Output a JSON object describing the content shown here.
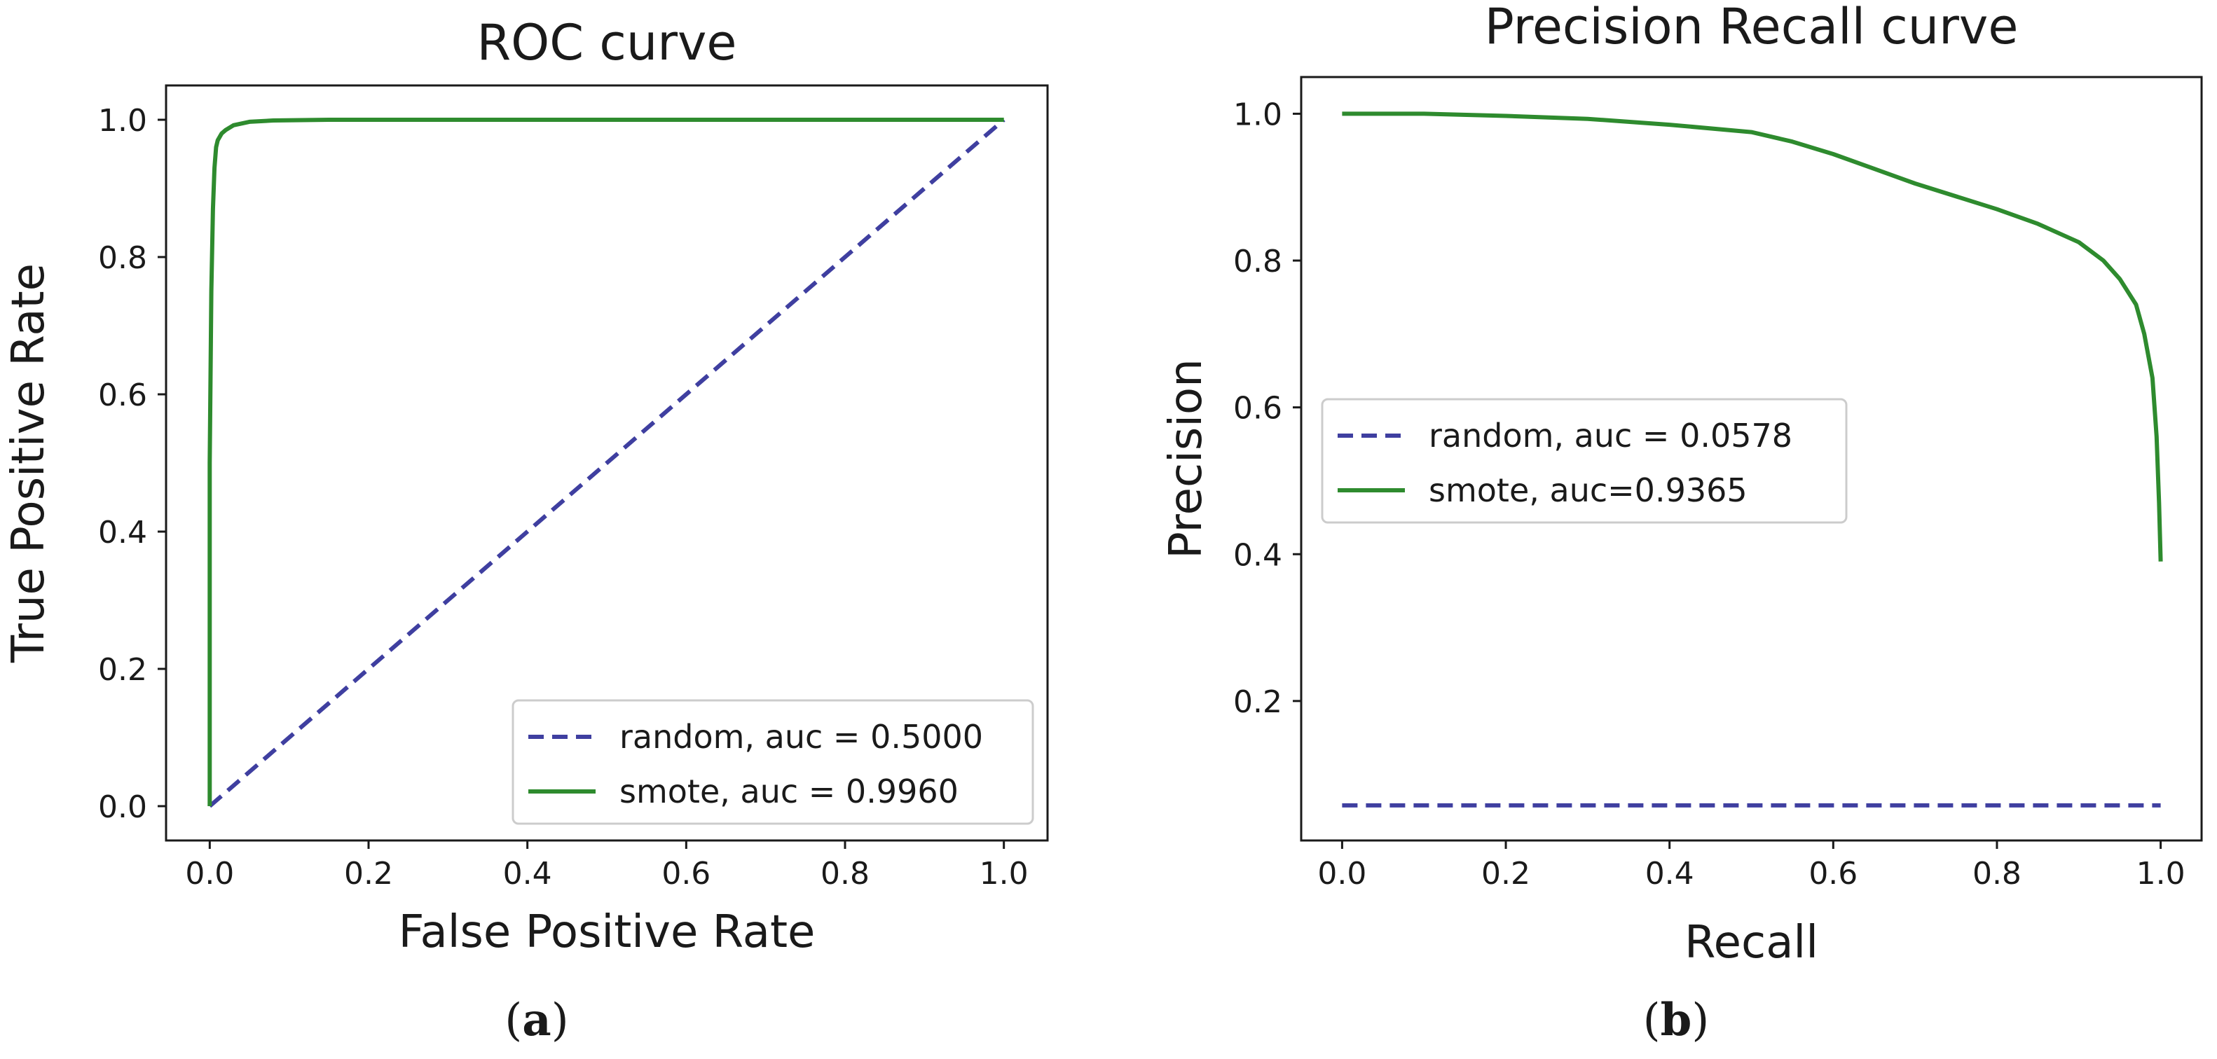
{
  "chart_data": [
    {
      "type": "line",
      "panel": "a",
      "caption_open": "(",
      "caption_letter": "a",
      "caption_close": ")",
      "title": "ROC curve",
      "xlabel": "False Positive Rate",
      "ylabel": "True Positive Rate",
      "xlim": [
        -0.055,
        1.055
      ],
      "ylim": [
        -0.05,
        1.05
      ],
      "xticks": [
        0.0,
        0.2,
        0.4,
        0.6,
        0.8,
        1.0
      ],
      "xtick_labels": [
        "0.0",
        "0.2",
        "0.4",
        "0.6",
        "0.8",
        "1.0"
      ],
      "yticks": [
        0.0,
        0.2,
        0.4,
        0.6,
        0.8,
        1.0
      ],
      "ytick_labels": [
        "0.0",
        "0.2",
        "0.4",
        "0.6",
        "0.8",
        "1.0"
      ],
      "legend_position": "lower-right",
      "series": [
        {
          "name": "random",
          "label": "random, auc = 0.5000",
          "color": "#3f3fa0",
          "dash": "dashed",
          "x": [
            0.0,
            1.0
          ],
          "y": [
            0.0,
            1.0
          ]
        },
        {
          "name": "smote",
          "label": "smote, auc = 0.9960",
          "color": "#2e8b2e",
          "dash": "solid",
          "x": [
            0.0,
            0.0,
            0.002,
            0.004,
            0.006,
            0.008,
            0.01,
            0.015,
            0.02,
            0.03,
            0.05,
            0.08,
            0.15,
            0.3,
            0.5,
            0.7,
            1.0
          ],
          "y": [
            0.0,
            0.5,
            0.75,
            0.87,
            0.93,
            0.96,
            0.97,
            0.98,
            0.985,
            0.992,
            0.997,
            0.999,
            1.0,
            1.0,
            1.0,
            1.0,
            1.0
          ]
        }
      ]
    },
    {
      "type": "line",
      "panel": "b",
      "caption_open": "(",
      "caption_letter": "b",
      "caption_close": ")",
      "title": "Precision Recall curve",
      "xlabel": "Recall",
      "ylabel": "Precision",
      "xlim": [
        -0.05,
        1.05
      ],
      "ylim": [
        0.01,
        1.05
      ],
      "xticks": [
        0.0,
        0.2,
        0.4,
        0.6,
        0.8,
        1.0
      ],
      "xtick_labels": [
        "0.0",
        "0.2",
        "0.4",
        "0.6",
        "0.8",
        "1.0"
      ],
      "yticks": [
        0.2,
        0.4,
        0.6,
        0.8,
        1.0
      ],
      "ytick_labels": [
        "0.2",
        "0.4",
        "0.6",
        "0.8",
        "1.0"
      ],
      "legend_position": "center-left",
      "series": [
        {
          "name": "random",
          "label": "random, auc = 0.0578",
          "color": "#3f3fa0",
          "dash": "dashed",
          "x": [
            0.0,
            1.0
          ],
          "y": [
            0.0578,
            0.0578
          ]
        },
        {
          "name": "smote",
          "label": "smote, auc=0.9365",
          "color": "#2e8b2e",
          "dash": "solid",
          "x": [
            0.0,
            0.1,
            0.2,
            0.3,
            0.4,
            0.5,
            0.55,
            0.6,
            0.7,
            0.8,
            0.85,
            0.9,
            0.93,
            0.95,
            0.97,
            0.98,
            0.99,
            0.995,
            0.998,
            1.0
          ],
          "y": [
            1.0,
            1.0,
            0.997,
            0.993,
            0.985,
            0.975,
            0.962,
            0.945,
            0.905,
            0.87,
            0.85,
            0.825,
            0.8,
            0.775,
            0.74,
            0.7,
            0.64,
            0.56,
            0.47,
            0.39
          ]
        }
      ]
    }
  ]
}
